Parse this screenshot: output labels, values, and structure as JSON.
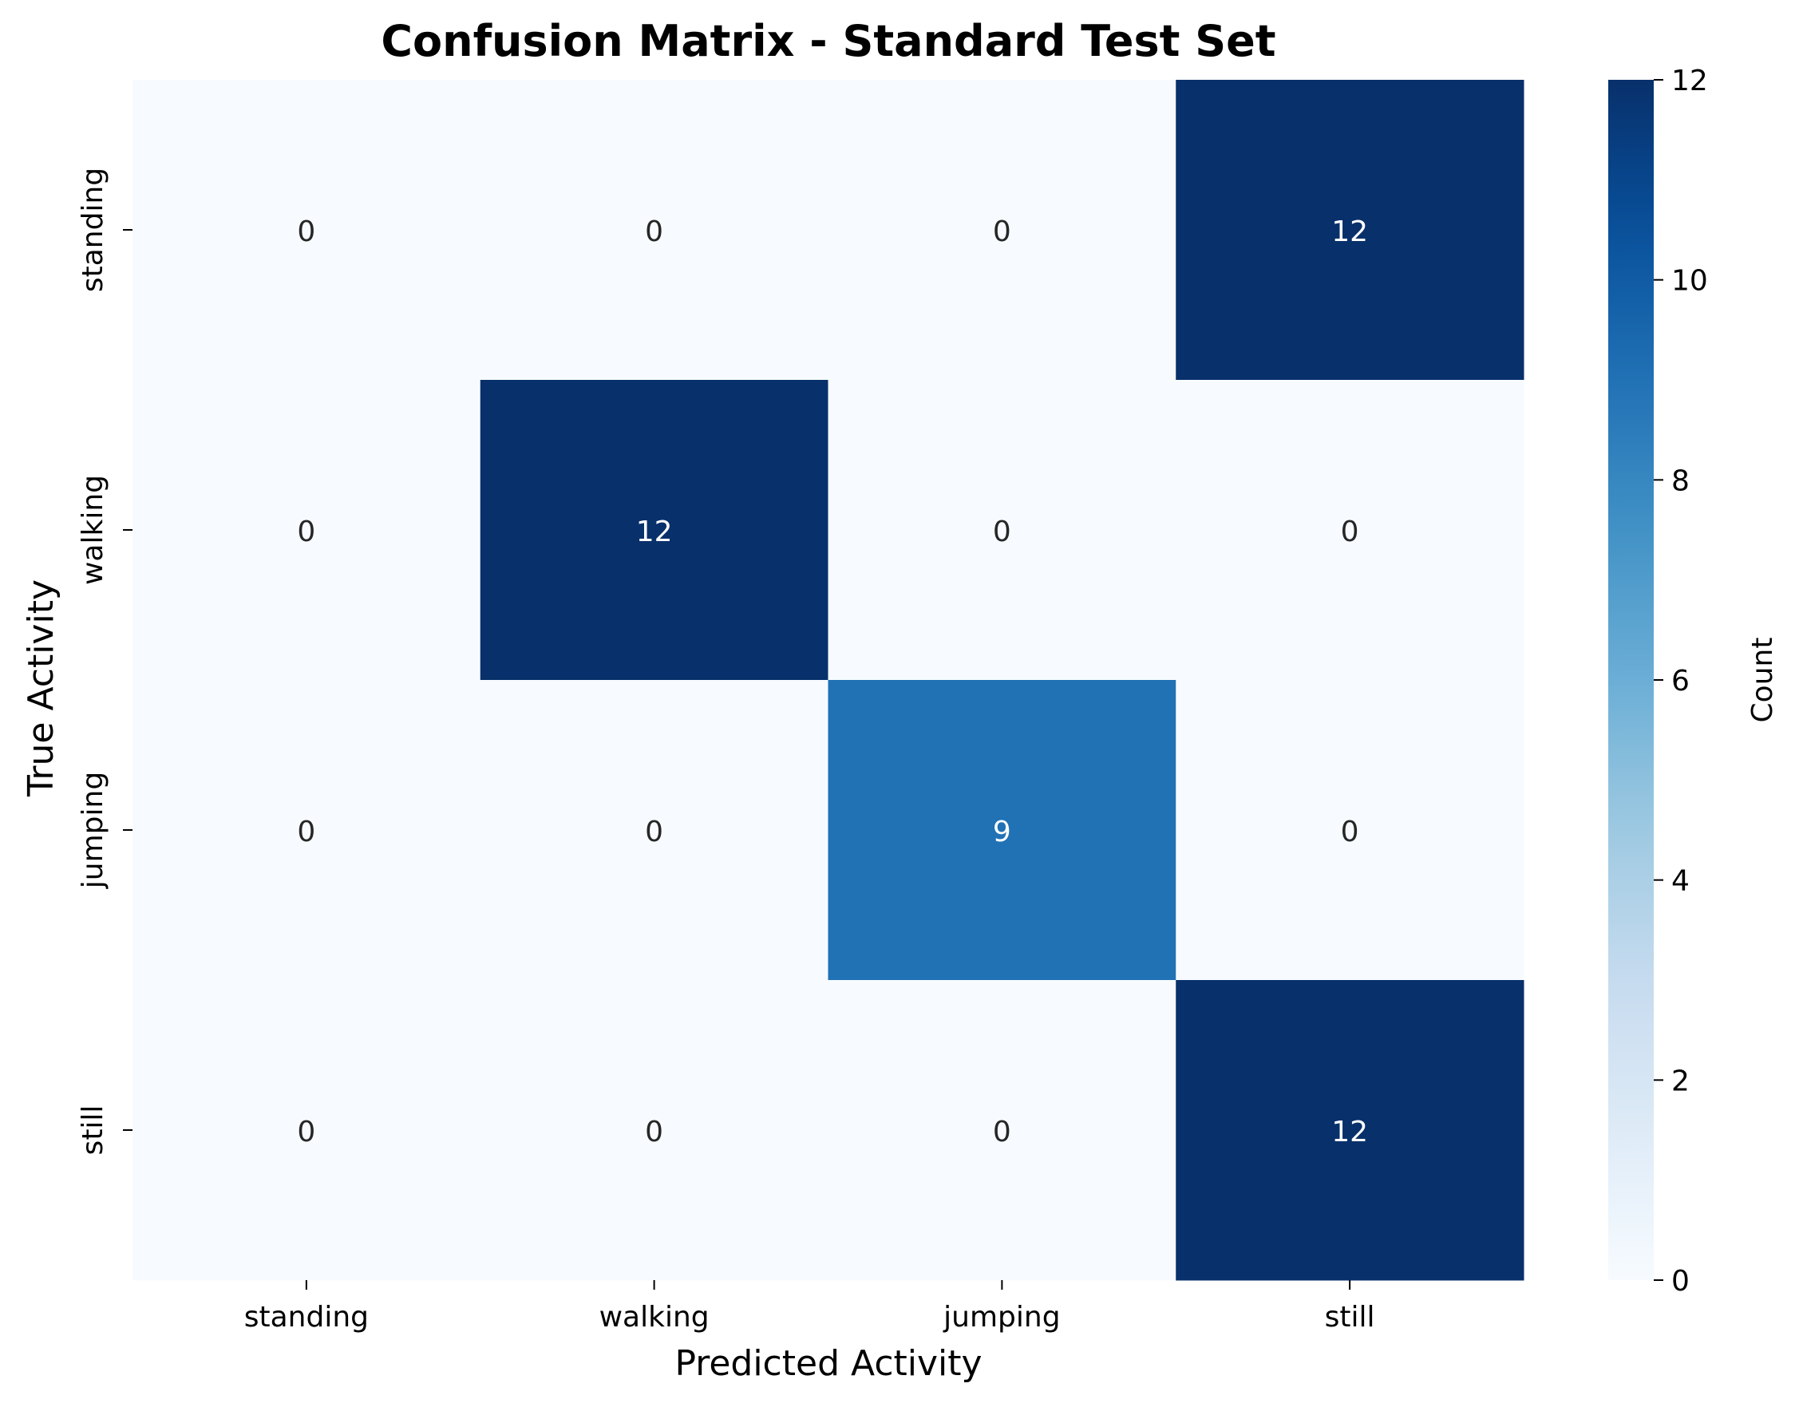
{
  "chart_data": {
    "type": "heatmap",
    "title": "Confusion Matrix - Standard Test Set",
    "xlabel": "Predicted Activity",
    "ylabel": "True Activity",
    "x_categories": [
      "standing",
      "walking",
      "jumping",
      "still"
    ],
    "y_categories": [
      "standing",
      "walking",
      "jumping",
      "still"
    ],
    "values": [
      [
        0,
        0,
        0,
        12
      ],
      [
        0,
        12,
        0,
        0
      ],
      [
        0,
        0,
        9,
        0
      ],
      [
        0,
        0,
        0,
        12
      ]
    ],
    "colorbar": {
      "label": "Count",
      "range": [
        0,
        12
      ],
      "ticks": [
        0,
        2,
        4,
        6,
        8,
        10,
        12
      ],
      "colormap": "Blues"
    },
    "annotations": "cell counts",
    "grid": false
  }
}
